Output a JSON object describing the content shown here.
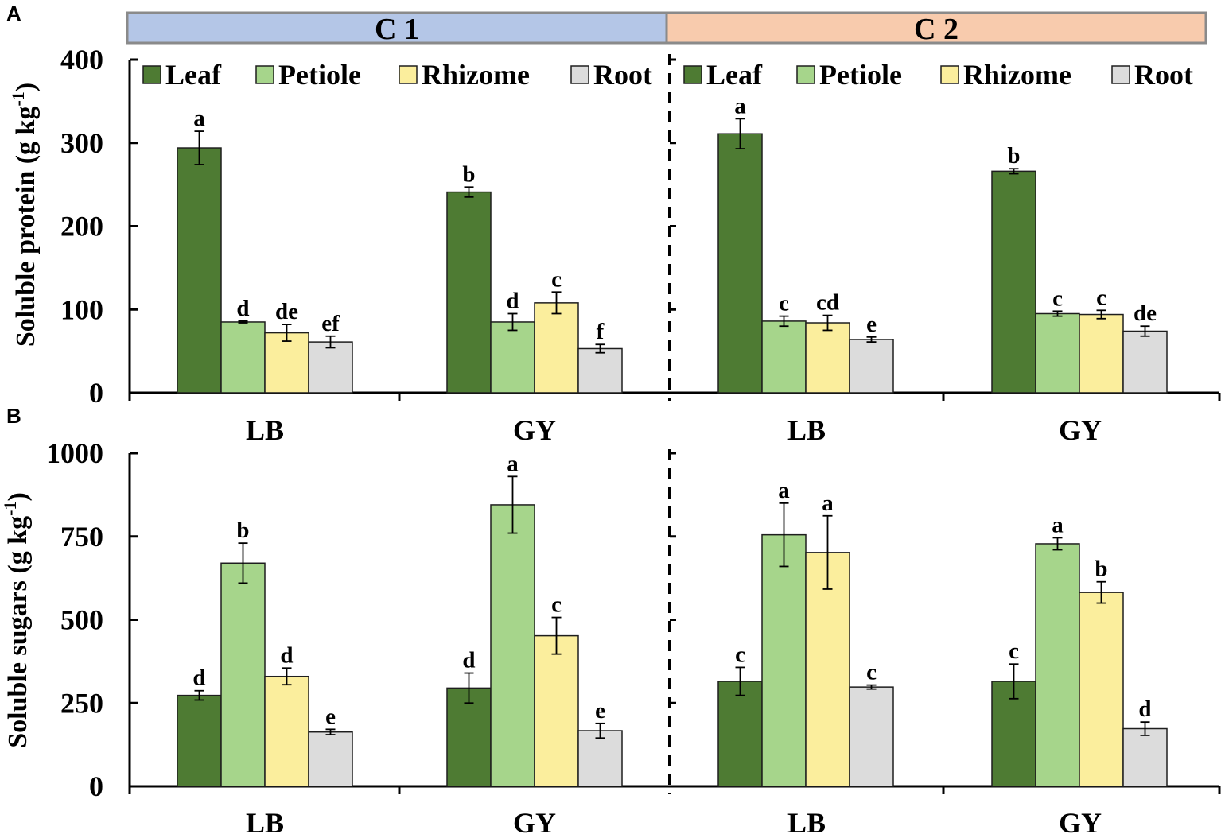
{
  "colors": {
    "Leaf": "#4e7b33",
    "Petiole": "#a6d58b",
    "Rhizome": "#fbee9d",
    "Root": "#dcdcdc",
    "c1_header": "#b4c6e7",
    "c2_header": "#f8cbad",
    "header_border": "#8a8a8a",
    "bar_border": "#1e1e1e"
  },
  "headers": [
    "C 1",
    "C 2"
  ],
  "chart_data": [
    {
      "panel": "A",
      "type": "bar",
      "ylabel": "Soluble protein (g kg",
      "ylabel_sup": "-1",
      "ylabel_tail": ")",
      "ylim": [
        0,
        400
      ],
      "yticks": [
        0,
        100,
        200,
        300,
        400
      ],
      "legend": [
        "Leaf",
        "Petiole",
        "Rhizome",
        "Root"
      ],
      "groups": [
        {
          "condition": "C 1",
          "label": "LB",
          "values": [
            294,
            85,
            72,
            61
          ],
          "errors": [
            20,
            1,
            10,
            7
          ],
          "letters": [
            "a",
            "d",
            "de",
            "ef"
          ]
        },
        {
          "condition": "C 1",
          "label": "GY",
          "values": [
            241,
            85,
            108,
            53
          ],
          "errors": [
            6,
            10,
            13,
            5
          ],
          "letters": [
            "b",
            "d",
            "c",
            "f"
          ]
        },
        {
          "condition": "C 2",
          "label": "LB",
          "values": [
            311,
            86,
            84,
            64
          ],
          "errors": [
            18,
            6,
            9,
            3
          ],
          "letters": [
            "a",
            "c",
            "cd",
            "e"
          ]
        },
        {
          "condition": "C 2",
          "label": "GY",
          "values": [
            266,
            95,
            94,
            74
          ],
          "errors": [
            3,
            3,
            5,
            6
          ],
          "letters": [
            "b",
            "c",
            "c",
            "de"
          ]
        }
      ]
    },
    {
      "panel": "B",
      "type": "bar",
      "ylabel": "Soluble sugars (g kg",
      "ylabel_sup": "-1",
      "ylabel_tail": ")",
      "ylim": [
        0,
        1000
      ],
      "yticks": [
        0,
        250,
        500,
        750,
        1000
      ],
      "legend": [],
      "groups": [
        {
          "condition": "C 1",
          "label": "LB",
          "values": [
            273,
            670,
            330,
            163
          ],
          "errors": [
            14,
            60,
            25,
            8
          ],
          "letters": [
            "d",
            "b",
            "d",
            "e"
          ]
        },
        {
          "condition": "C 1",
          "label": "GY",
          "values": [
            295,
            845,
            452,
            167
          ],
          "errors": [
            45,
            85,
            55,
            22
          ],
          "letters": [
            "d",
            "a",
            "c",
            "e"
          ]
        },
        {
          "condition": "C 2",
          "label": "LB",
          "values": [
            315,
            755,
            702,
            298
          ],
          "errors": [
            42,
            95,
            110,
            6
          ],
          "letters": [
            "c",
            "a",
            "a",
            "c"
          ]
        },
        {
          "condition": "C 2",
          "label": "GY",
          "values": [
            315,
            728,
            582,
            173
          ],
          "errors": [
            52,
            18,
            32,
            20
          ],
          "letters": [
            "c",
            "a",
            "b",
            "d"
          ]
        }
      ]
    }
  ]
}
